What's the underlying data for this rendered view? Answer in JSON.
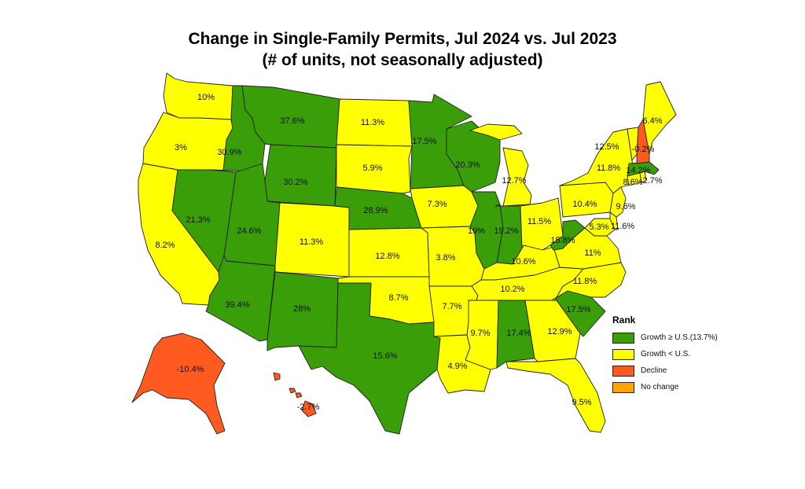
{
  "title": {
    "line1": "Change in Single-Family Permits, Jul 2024 vs. Jul 2023",
    "line2": "(# of units, not seasonally adjusted)"
  },
  "colors": {
    "growth_above": "#3a9e08",
    "growth_below": "#ffff00",
    "decline": "#ff5a1f",
    "no_change": "#ffa500"
  },
  "legend": {
    "title": "Rank",
    "items": [
      {
        "key": "growth_above",
        "label": "Growth ≥ U.S.(13.7%)"
      },
      {
        "key": "growth_below",
        "label": "Growth < U.S."
      },
      {
        "key": "decline",
        "label": "Decline"
      },
      {
        "key": "no_change",
        "label": "No change"
      }
    ]
  },
  "states": [
    {
      "code": "WA",
      "value": "10%",
      "rank": "growth_below"
    },
    {
      "code": "OR",
      "value": "3%",
      "rank": "growth_below"
    },
    {
      "code": "CA",
      "value": "8.2%",
      "rank": "growth_below"
    },
    {
      "code": "ID",
      "value": "30.9%",
      "rank": "growth_above"
    },
    {
      "code": "NV",
      "value": "21.3%",
      "rank": "growth_above"
    },
    {
      "code": "MT",
      "value": "37.6%",
      "rank": "growth_above"
    },
    {
      "code": "WY",
      "value": "30.2%",
      "rank": "growth_above"
    },
    {
      "code": "UT",
      "value": "24.6%",
      "rank": "growth_above"
    },
    {
      "code": "AZ",
      "value": "39.4%",
      "rank": "growth_above"
    },
    {
      "code": "CO",
      "value": "11.3%",
      "rank": "growth_below"
    },
    {
      "code": "NM",
      "value": "28%",
      "rank": "growth_above"
    },
    {
      "code": "ND",
      "value": "11.3%",
      "rank": "growth_below"
    },
    {
      "code": "SD",
      "value": "5.9%",
      "rank": "growth_below"
    },
    {
      "code": "NE",
      "value": "28.9%",
      "rank": "growth_above"
    },
    {
      "code": "KS",
      "value": "12.8%",
      "rank": "growth_below"
    },
    {
      "code": "OK",
      "value": "8.7%",
      "rank": "growth_below"
    },
    {
      "code": "TX",
      "value": "15.6%",
      "rank": "growth_above"
    },
    {
      "code": "MN",
      "value": "17.5%",
      "rank": "growth_above"
    },
    {
      "code": "IA",
      "value": "7.3%",
      "rank": "growth_below"
    },
    {
      "code": "MO",
      "value": "3.8%",
      "rank": "growth_below"
    },
    {
      "code": "AR",
      "value": "7.7%",
      "rank": "growth_below"
    },
    {
      "code": "LA",
      "value": "4.9%",
      "rank": "growth_below"
    },
    {
      "code": "WI",
      "value": "20.3%",
      "rank": "growth_above"
    },
    {
      "code": "IL",
      "value": "19%",
      "rank": "growth_above"
    },
    {
      "code": "MI",
      "value": "12.7%",
      "rank": "growth_below"
    },
    {
      "code": "IN",
      "value": "19.2%",
      "rank": "growth_above"
    },
    {
      "code": "OH",
      "value": "11.5%",
      "rank": "growth_below"
    },
    {
      "code": "KY",
      "value": "10.6%",
      "rank": "growth_below"
    },
    {
      "code": "TN",
      "value": "10.2%",
      "rank": "growth_below"
    },
    {
      "code": "MS",
      "value": "9.7%",
      "rank": "growth_below"
    },
    {
      "code": "AL",
      "value": "17.4%",
      "rank": "growth_above"
    },
    {
      "code": "GA",
      "value": "12.9%",
      "rank": "growth_below"
    },
    {
      "code": "FL",
      "value": "9.5%",
      "rank": "growth_below"
    },
    {
      "code": "SC",
      "value": "17.5%",
      "rank": "growth_above"
    },
    {
      "code": "NC",
      "value": "11.8%",
      "rank": "growth_below"
    },
    {
      "code": "VA",
      "value": "11%",
      "rank": "growth_below"
    },
    {
      "code": "WV",
      "value": "15.8%",
      "rank": "growth_above"
    },
    {
      "code": "PA",
      "value": "10.4%",
      "rank": "growth_below"
    },
    {
      "code": "NY",
      "value": "11.8%",
      "rank": "growth_below"
    },
    {
      "code": "MD",
      "value": "5.3%",
      "rank": "growth_below"
    },
    {
      "code": "DE",
      "value": "11.6%",
      "rank": "growth_below"
    },
    {
      "code": "NJ",
      "value": "9.6%",
      "rank": "growth_below"
    },
    {
      "code": "CT",
      "value": "8.6%",
      "rank": "growth_below"
    },
    {
      "code": "RI",
      "value": "2.7%",
      "rank": "growth_below"
    },
    {
      "code": "MA",
      "value": "14.2%",
      "rank": "growth_above"
    },
    {
      "code": "VT",
      "value": "12.5%",
      "rank": "growth_below"
    },
    {
      "code": "NH",
      "value": "-0.2%",
      "rank": "decline"
    },
    {
      "code": "ME",
      "value": "6.4%",
      "rank": "growth_below"
    },
    {
      "code": "AK",
      "value": "-10.4%",
      "rank": "decline"
    },
    {
      "code": "HI",
      "value": "-2.7%",
      "rank": "decline"
    }
  ]
}
